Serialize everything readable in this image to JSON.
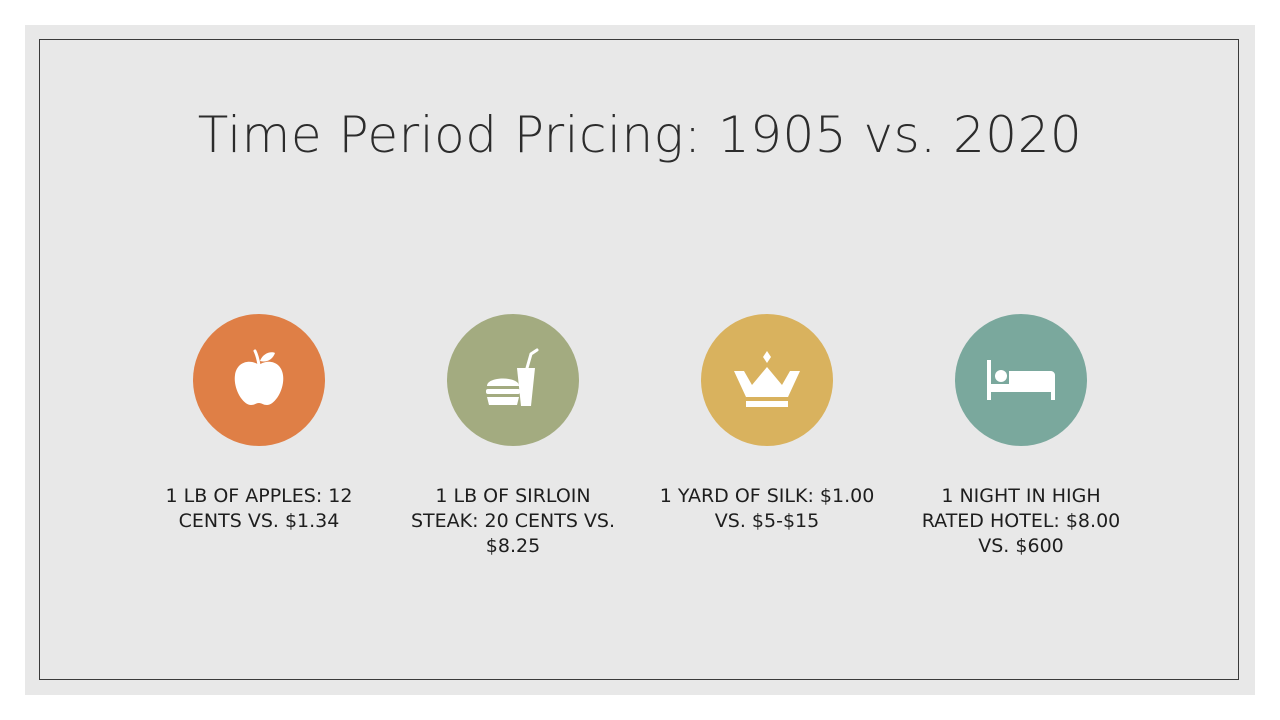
{
  "slide": {
    "title": "Time Period Pricing: 1905 vs. 2020"
  },
  "items": [
    {
      "caption": "1 lb of apples: 12 cents vs. $1.34",
      "icon": "apple-icon",
      "color": "#df7f46"
    },
    {
      "caption": "1 lb of sirloin steak: 20 cents vs. $8.25",
      "icon": "fast-food-icon",
      "color": "#a3ab80"
    },
    {
      "caption": "1 yard of silk: $1.00 vs. $5-$15",
      "icon": "crown-icon",
      "color": "#d9b25e"
    },
    {
      "caption": "1 night in high rated hotel: $8.00 vs. $600",
      "icon": "bed-icon",
      "color": "#7aa89d"
    }
  ]
}
